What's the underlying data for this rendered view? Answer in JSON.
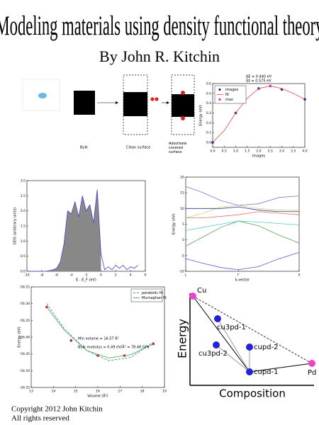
{
  "header": {
    "title": "Modeling materials using density functional theory",
    "author": "By John R. Kitchin"
  },
  "diagram": {
    "labels": [
      "Bulk",
      "Clean surface",
      "Adsorbate covered surface"
    ]
  },
  "hull": {
    "axis_labels": {
      "y": "Energy",
      "x": "Composition"
    },
    "nodes": [
      {
        "label": "Cu"
      },
      {
        "label": "cu3pd-1"
      },
      {
        "label": "cu3pd-2"
      },
      {
        "label": "cupd-2"
      },
      {
        "label": "cupd-1"
      },
      {
        "label": "Pd"
      }
    ]
  },
  "footer": {
    "lines": [
      "Copyright 2012 John Kitchin",
      "All rights reserved"
    ]
  },
  "chart_data": [
    {
      "type": "line",
      "title_lines": [
        "ΔE = 0.440 eV",
        "E‡ = 0.575 eV"
      ],
      "x_label": "Images",
      "y_label": "Energy (eV)",
      "legend": "upper left",
      "xlim": [
        0,
        4
      ],
      "ylim": [
        -0.05,
        0.6
      ],
      "xticks": [
        {
          "value": 0,
          "label": "0.0"
        },
        0.5,
        {
          "value": 1,
          "label": "1.0"
        },
        1.5,
        {
          "value": 2,
          "label": "2.0"
        },
        2.5,
        {
          "value": 3,
          "label": "3.0"
        },
        3.5,
        {
          "value": 4,
          "label": "4.0"
        }
      ],
      "yticks": [
        {
          "value": 0,
          "label": "0.0"
        },
        0.1,
        0.2,
        0.3,
        0.4,
        0.5,
        0.6
      ],
      "series": [
        {
          "name": "images",
          "color": "#222288",
          "style": "points",
          "x": [
            0,
            1,
            2,
            3,
            4
          ],
          "values": [
            0,
            0.3,
            0.55,
            0.54,
            0.44
          ]
        },
        {
          "name": "fit",
          "color": "#e05050",
          "style": "line",
          "x": [
            0,
            0.5,
            1,
            1.5,
            2,
            2.5,
            3,
            3.5,
            4
          ],
          "values": [
            0,
            0.12,
            0.3,
            0.45,
            0.55,
            0.575,
            0.55,
            0.5,
            0.44
          ]
        },
        {
          "name": "max",
          "color": "#cc33cc",
          "style": "points",
          "x": [
            2.5
          ],
          "values": [
            0.575
          ]
        }
      ]
    },
    {
      "type": "line",
      "x_label": "E - E_F (eV)",
      "y_label": "DOS (arbitrary units)",
      "xlim": [
        -10,
        6
      ],
      "ylim": [
        0,
        3
      ],
      "xticks": [
        -10,
        -8,
        -6,
        -4,
        -2,
        0,
        2,
        4,
        6
      ],
      "yticks": [
        {
          "value": 0,
          "label": "0.0"
        },
        0.5,
        {
          "value": 1,
          "label": "1.0"
        },
        1.5,
        {
          "value": 2,
          "label": "2.0"
        },
        2.5,
        {
          "value": 3,
          "label": "3.0"
        }
      ],
      "x": [
        -10,
        -9.5,
        -9,
        -8.5,
        -8,
        -7.5,
        -7,
        -6.5,
        -6,
        -5.5,
        -5,
        -4.5,
        -4,
        -3.5,
        -3,
        -2.5,
        -2,
        -1.5,
        -1,
        -0.5,
        0,
        0.5,
        1,
        1.5,
        2,
        2.5,
        3,
        3.5,
        4,
        4.5,
        5
      ],
      "series": [
        {
          "color": "#4444cc",
          "style": "line",
          "fill_occupied": "#888888",
          "values": [
            0,
            0,
            0,
            0,
            0,
            0,
            0.02,
            0.05,
            0.1,
            0.3,
            0.9,
            2.0,
            1.9,
            2.3,
            1.8,
            2.5,
            2.0,
            2.2,
            1.6,
            2.7,
            0.6,
            0.05,
            0.15,
            0.05,
            0.2,
            0.1,
            0.2,
            0.05,
            0.15,
            0.1,
            0.2
          ]
        }
      ]
    },
    {
      "type": "line",
      "x_label": "k-vector",
      "y_label": "Energy (eV)",
      "xlim": [
        0,
        1.87
      ],
      "ylim": [
        -10,
        20
      ],
      "xticks": [
        {
          "value": 0,
          "label": "L"
        },
        {
          "value": 0.87,
          "label": "Γ"
        },
        {
          "value": 1.87,
          "label": "X"
        }
      ],
      "yticks": [
        -10,
        -5,
        0,
        5,
        10,
        15,
        20
      ],
      "x": [
        0,
        0.29,
        0.58,
        0.87,
        1.2,
        1.54,
        1.87
      ],
      "series": [
        {
          "color": "#5555dd",
          "style": "line",
          "values": [
            -6,
            -7.5,
            -8.8,
            -9.5,
            -8.5,
            -6,
            -4
          ]
        },
        {
          "color": "#55aa55",
          "style": "line",
          "values": [
            -2,
            1,
            4,
            6,
            4.5,
            1.5,
            -1
          ]
        },
        {
          "color": "#55cccc",
          "style": "line",
          "values": [
            3,
            4,
            5,
            6,
            5.7,
            5.2,
            4.8
          ]
        },
        {
          "color": "#e07070",
          "style": "line",
          "values": [
            7,
            7,
            7.5,
            8,
            9,
            8.5,
            8
          ]
        },
        {
          "color": "#c8d870",
          "style": "line",
          "values": [
            7,
            8.5,
            10.5,
            11,
            10,
            9.5,
            9.5
          ]
        },
        {
          "color": "#333388",
          "style": "line",
          "values": [
            10,
            10,
            10,
            10.5,
            9.5,
            9,
            9
          ]
        },
        {
          "color": "#8a70d8",
          "style": "line",
          "values": [
            17,
            15,
            12.5,
            11,
            11.5,
            13.5,
            14
          ]
        }
      ]
    },
    {
      "type": "line",
      "x_label": "Volume (Å³)",
      "y_label": "Energy (eV)",
      "legend": "upper right",
      "annotations": [
        "Min volume = 16.57 Å³",
        "Bulk modulus = 0.49 eV/Å³ = 78.46 GPa"
      ],
      "xlim": [
        13,
        19
      ],
      "ylim": [
        -56.55,
        -56.25
      ],
      "xticks": [
        13,
        14,
        15,
        16,
        17,
        18,
        19
      ],
      "yticks": [
        -56.55,
        {
          "value": -56.5,
          "label": "-56.50"
        },
        -56.45,
        {
          "value": -56.4,
          "label": "-56.40"
        },
        -56.35,
        {
          "value": -56.3,
          "label": "-56.30"
        },
        -56.25
      ],
      "series": [
        {
          "color": "#cc2222",
          "style": "points",
          "x": [
            13.7,
            14.8,
            16.0,
            17.2,
            18.5
          ],
          "values": [
            -56.31,
            -56.41,
            -56.455,
            -56.455,
            -56.42
          ]
        },
        {
          "name": "parabolic fit",
          "color": "#4466dd",
          "style": "dashed",
          "x": [
            13.7,
            14.5,
            15.5,
            16.5,
            17.5,
            18.5
          ],
          "values": [
            -56.3,
            -56.375,
            -56.44,
            -56.47,
            -56.46,
            -56.415
          ]
        },
        {
          "name": "Murnaghan fit",
          "color": "#33aa33",
          "style": "line",
          "x": [
            13.7,
            14.5,
            15.5,
            16.5,
            17.5,
            18.5
          ],
          "values": [
            -56.31,
            -56.38,
            -56.44,
            -56.462,
            -56.452,
            -56.42
          ]
        }
      ]
    }
  ]
}
